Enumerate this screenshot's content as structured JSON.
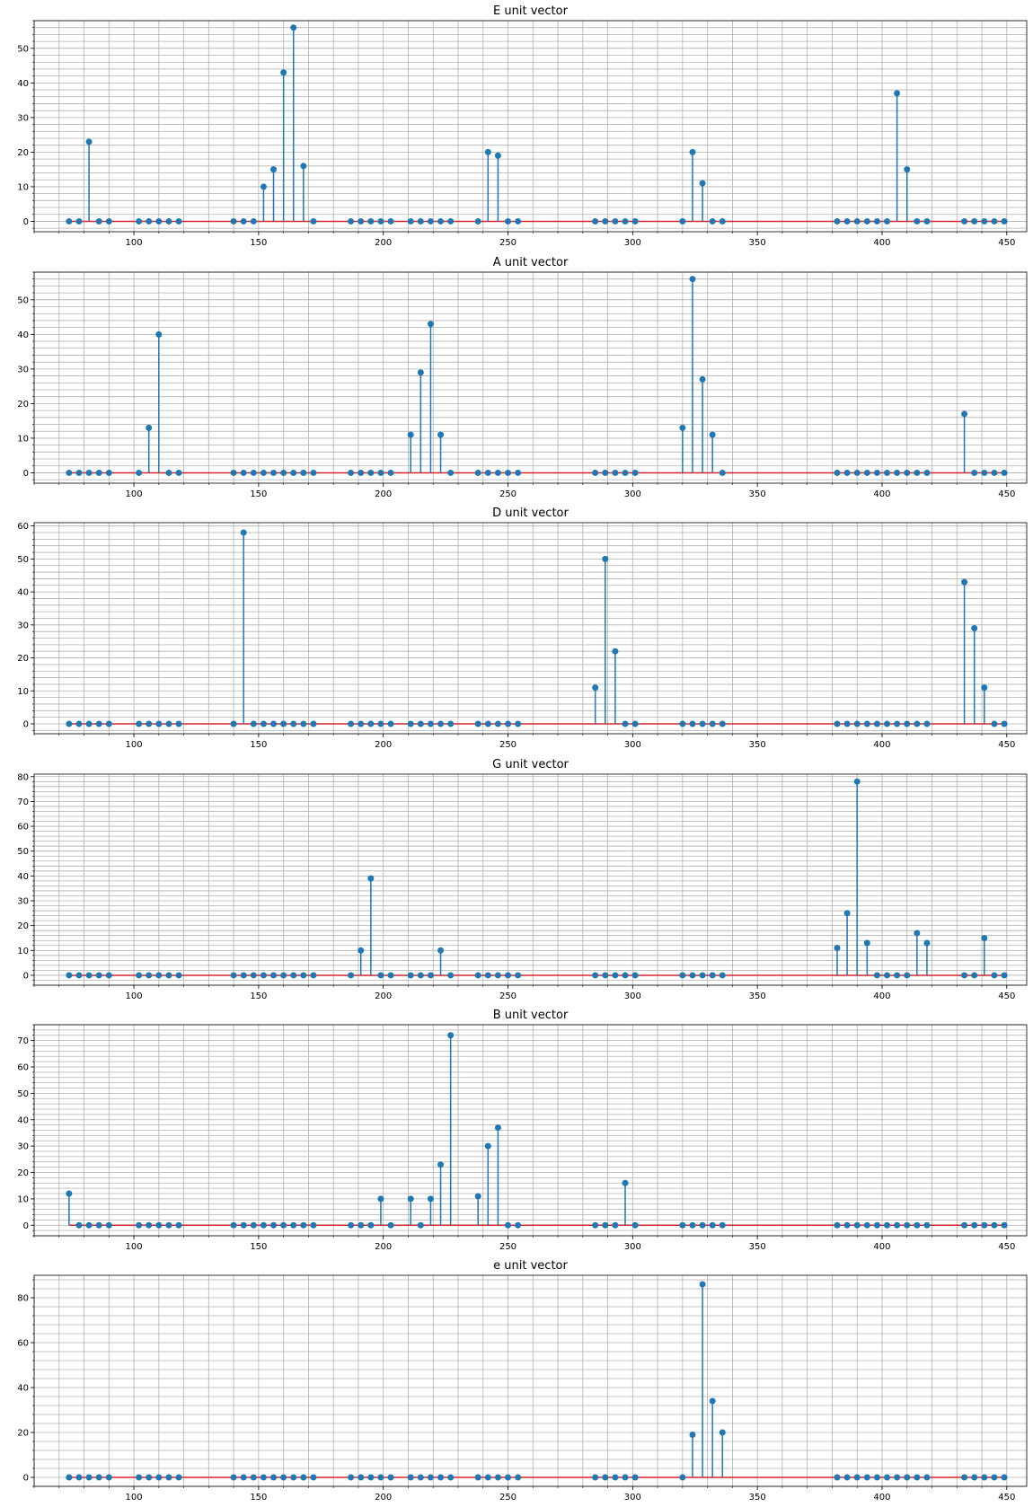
{
  "x_positions": [
    74,
    78,
    82,
    86,
    90,
    102,
    106,
    110,
    114,
    118,
    140,
    144,
    148,
    152,
    156,
    160,
    164,
    168,
    172,
    187,
    191,
    195,
    199,
    203,
    211,
    215,
    219,
    223,
    227,
    238,
    242,
    246,
    250,
    254,
    285,
    289,
    293,
    297,
    301,
    320,
    324,
    328,
    332,
    336,
    382,
    386,
    390,
    394,
    398,
    402,
    406,
    410,
    414,
    418,
    433,
    437,
    441,
    445,
    449
  ],
  "chart_data": [
    {
      "type": "stem",
      "title": "E unit vector",
      "xlim": [
        60,
        458
      ],
      "ylim": [
        -3,
        58
      ],
      "x_ticks": [
        100,
        150,
        200,
        250,
        300,
        350,
        400,
        450
      ],
      "y_ticks": [
        0,
        10,
        20,
        30,
        40,
        50
      ],
      "grid": true,
      "series": [
        {
          "x": [
            74,
            78,
            82,
            86,
            90,
            102,
            106,
            110,
            114,
            118,
            140,
            144,
            148,
            152,
            156,
            160,
            164,
            168,
            172,
            187,
            191,
            195,
            199,
            203,
            211,
            215,
            219,
            223,
            227,
            238,
            242,
            246,
            250,
            254,
            285,
            289,
            293,
            297,
            301,
            320,
            324,
            328,
            332,
            336,
            382,
            386,
            390,
            394,
            398,
            402,
            406,
            410,
            414,
            418,
            433,
            437,
            441,
            445,
            449
          ],
          "values": [
            0,
            0,
            23,
            0,
            0,
            0,
            0,
            0,
            0,
            0,
            0,
            0,
            0,
            10,
            15,
            43,
            56,
            16,
            0,
            0,
            0,
            0,
            0,
            0,
            0,
            0,
            0,
            0,
            0,
            0,
            20,
            19,
            0,
            0,
            0,
            0,
            0,
            0,
            0,
            0,
            20,
            11,
            0,
            0,
            0,
            0,
            0,
            0,
            0,
            0,
            37,
            15,
            0,
            0,
            0,
            0,
            0,
            0,
            0
          ]
        }
      ]
    },
    {
      "type": "stem",
      "title": "A unit vector",
      "xlim": [
        60,
        458
      ],
      "ylim": [
        -3,
        58
      ],
      "x_ticks": [
        100,
        150,
        200,
        250,
        300,
        350,
        400,
        450
      ],
      "y_ticks": [
        0,
        10,
        20,
        30,
        40,
        50
      ],
      "grid": true,
      "series": [
        {
          "x": [
            74,
            78,
            82,
            86,
            90,
            102,
            106,
            110,
            114,
            118,
            140,
            144,
            148,
            152,
            156,
            160,
            164,
            168,
            172,
            187,
            191,
            195,
            199,
            203,
            211,
            215,
            219,
            223,
            227,
            238,
            242,
            246,
            250,
            254,
            285,
            289,
            293,
            297,
            301,
            320,
            324,
            328,
            332,
            336,
            382,
            386,
            390,
            394,
            398,
            402,
            406,
            410,
            414,
            418,
            433,
            437,
            441,
            445,
            449
          ],
          "values": [
            0,
            0,
            0,
            0,
            0,
            0,
            13,
            40,
            0,
            0,
            0,
            0,
            0,
            0,
            0,
            0,
            0,
            0,
            0,
            0,
            0,
            0,
            0,
            0,
            11,
            29,
            43,
            11,
            0,
            0,
            0,
            0,
            0,
            0,
            0,
            0,
            0,
            0,
            0,
            13,
            56,
            27,
            11,
            0,
            0,
            0,
            0,
            0,
            0,
            0,
            0,
            0,
            0,
            0,
            17,
            0,
            0,
            0,
            0
          ]
        }
      ]
    },
    {
      "type": "stem",
      "title": "D unit vector",
      "xlim": [
        60,
        458
      ],
      "ylim": [
        -3,
        61
      ],
      "x_ticks": [
        100,
        150,
        200,
        250,
        300,
        350,
        400,
        450
      ],
      "y_ticks": [
        0,
        10,
        20,
        30,
        40,
        50,
        60
      ],
      "grid": true,
      "series": [
        {
          "x": [
            74,
            78,
            82,
            86,
            90,
            102,
            106,
            110,
            114,
            118,
            140,
            144,
            148,
            152,
            156,
            160,
            164,
            168,
            172,
            187,
            191,
            195,
            199,
            203,
            211,
            215,
            219,
            223,
            227,
            238,
            242,
            246,
            250,
            254,
            285,
            289,
            293,
            297,
            301,
            320,
            324,
            328,
            332,
            336,
            382,
            386,
            390,
            394,
            398,
            402,
            406,
            410,
            414,
            418,
            433,
            437,
            441,
            445,
            449
          ],
          "values": [
            0,
            0,
            0,
            0,
            0,
            0,
            0,
            0,
            0,
            0,
            0,
            58,
            0,
            0,
            0,
            0,
            0,
            0,
            0,
            0,
            0,
            0,
            0,
            0,
            0,
            0,
            0,
            0,
            0,
            0,
            0,
            0,
            0,
            0,
            11,
            50,
            22,
            0,
            0,
            0,
            0,
            0,
            0,
            0,
            0,
            0,
            0,
            0,
            0,
            0,
            0,
            0,
            0,
            0,
            43,
            29,
            11,
            0,
            0
          ]
        }
      ]
    },
    {
      "type": "stem",
      "title": "G unit vector",
      "xlim": [
        60,
        458
      ],
      "ylim": [
        -4,
        81
      ],
      "x_ticks": [
        100,
        150,
        200,
        250,
        300,
        350,
        400,
        450
      ],
      "y_ticks": [
        0,
        10,
        20,
        30,
        40,
        50,
        60,
        70,
        80
      ],
      "grid": true,
      "series": [
        {
          "x": [
            74,
            78,
            82,
            86,
            90,
            102,
            106,
            110,
            114,
            118,
            140,
            144,
            148,
            152,
            156,
            160,
            164,
            168,
            172,
            187,
            191,
            195,
            199,
            203,
            211,
            215,
            219,
            223,
            227,
            238,
            242,
            246,
            250,
            254,
            285,
            289,
            293,
            297,
            301,
            320,
            324,
            328,
            332,
            336,
            382,
            386,
            390,
            394,
            398,
            402,
            406,
            410,
            414,
            418,
            433,
            437,
            441,
            445,
            449
          ],
          "values": [
            0,
            0,
            0,
            0,
            0,
            0,
            0,
            0,
            0,
            0,
            0,
            0,
            0,
            0,
            0,
            0,
            0,
            0,
            0,
            0,
            10,
            39,
            0,
            0,
            0,
            0,
            0,
            10,
            0,
            0,
            0,
            0,
            0,
            0,
            0,
            0,
            0,
            0,
            0,
            0,
            0,
            0,
            0,
            0,
            11,
            25,
            78,
            13,
            0,
            0,
            0,
            0,
            17,
            13,
            0,
            0,
            15,
            0,
            0
          ]
        }
      ]
    },
    {
      "type": "stem",
      "title": "B unit vector",
      "xlim": [
        60,
        458
      ],
      "ylim": [
        -4,
        76
      ],
      "x_ticks": [
        100,
        150,
        200,
        250,
        300,
        350,
        400,
        450
      ],
      "y_ticks": [
        0,
        10,
        20,
        30,
        40,
        50,
        60,
        70
      ],
      "grid": true,
      "series": [
        {
          "x": [
            74,
            78,
            82,
            86,
            90,
            102,
            106,
            110,
            114,
            118,
            140,
            144,
            148,
            152,
            156,
            160,
            164,
            168,
            172,
            187,
            191,
            195,
            199,
            203,
            211,
            215,
            219,
            223,
            227,
            238,
            242,
            246,
            250,
            254,
            285,
            289,
            293,
            297,
            301,
            320,
            324,
            328,
            332,
            336,
            382,
            386,
            390,
            394,
            398,
            402,
            406,
            410,
            414,
            418,
            433,
            437,
            441,
            445,
            449
          ],
          "values": [
            12,
            0,
            0,
            0,
            0,
            0,
            0,
            0,
            0,
            0,
            0,
            0,
            0,
            0,
            0,
            0,
            0,
            0,
            0,
            0,
            0,
            0,
            10,
            0,
            10,
            0,
            10,
            23,
            72,
            11,
            30,
            37,
            0,
            0,
            0,
            0,
            0,
            16,
            0,
            0,
            0,
            0,
            0,
            0,
            0,
            0,
            0,
            0,
            0,
            0,
            0,
            0,
            0,
            0,
            0,
            0,
            0,
            0,
            0
          ]
        }
      ]
    },
    {
      "type": "stem",
      "title": "e unit vector",
      "xlim": [
        60,
        458
      ],
      "ylim": [
        -4,
        90
      ],
      "x_ticks": [
        100,
        150,
        200,
        250,
        300,
        350,
        400,
        450
      ],
      "y_ticks": [
        0,
        20,
        40,
        60,
        80
      ],
      "grid": true,
      "series": [
        {
          "x": [
            74,
            78,
            82,
            86,
            90,
            102,
            106,
            110,
            114,
            118,
            140,
            144,
            148,
            152,
            156,
            160,
            164,
            168,
            172,
            187,
            191,
            195,
            199,
            203,
            211,
            215,
            219,
            223,
            227,
            238,
            242,
            246,
            250,
            254,
            285,
            289,
            293,
            297,
            301,
            320,
            324,
            328,
            332,
            336,
            382,
            386,
            390,
            394,
            398,
            402,
            406,
            410,
            414,
            418,
            433,
            437,
            441,
            445,
            449
          ],
          "values": [
            0,
            0,
            0,
            0,
            0,
            0,
            0,
            0,
            0,
            0,
            0,
            0,
            0,
            0,
            0,
            0,
            0,
            0,
            0,
            0,
            0,
            0,
            0,
            0,
            0,
            0,
            0,
            0,
            0,
            0,
            0,
            0,
            0,
            0,
            0,
            0,
            0,
            0,
            0,
            0,
            19,
            86,
            34,
            20,
            0,
            0,
            0,
            0,
            0,
            0,
            0,
            0,
            0,
            0,
            0,
            0,
            0,
            0,
            0
          ]
        }
      ]
    }
  ],
  "colors": {
    "stem": "#1f77b4",
    "baseline": "#d62728",
    "grid": "#b0b0b0"
  }
}
